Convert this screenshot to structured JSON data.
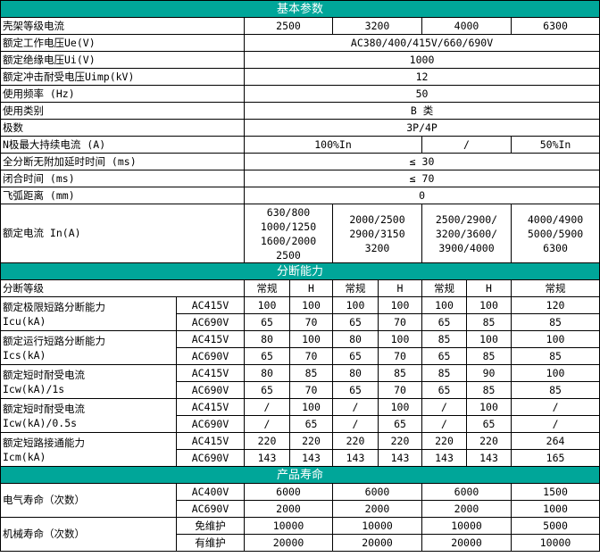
{
  "colors": {
    "section_header_bg": "#00a699",
    "section_header_text": "#ffffff",
    "border": "#000000"
  },
  "basic": {
    "title": "基本参数",
    "rows": [
      {
        "label": "壳架等级电流",
        "values": [
          "2500",
          "3200",
          "4000",
          "6300"
        ]
      },
      {
        "label": "额定工作电压Ue(V)",
        "values": [
          "AC380/400/415V/660/690V"
        ]
      },
      {
        "label": "额定绝缘电压Ui(V)",
        "values": [
          "1000"
        ]
      },
      {
        "label": "额定冲击耐受电压Uimp(kV)",
        "values": [
          "12"
        ]
      },
      {
        "label": "使用频率 (Hz)",
        "values": [
          "50"
        ]
      },
      {
        "label": "使用类别",
        "values": [
          "B 类"
        ]
      },
      {
        "label": "极数",
        "values": [
          "3P/4P"
        ]
      },
      {
        "label": "N极最大持续电流 (A)",
        "values": [
          "100%In",
          "/",
          "50%In"
        ]
      },
      {
        "label": "全分断无附加延时时间 (ms)",
        "values": [
          "≤ 30"
        ]
      },
      {
        "label": "闭合时间 (ms)",
        "values": [
          "≤ 70"
        ]
      },
      {
        "label": "飞弧距离 (mm)",
        "values": [
          "0"
        ]
      },
      {
        "label": "额定电流 In(A)",
        "values": [
          "630/800\n1000/1250\n1600/2000\n2500",
          "2000/2500\n2900/3150\n3200",
          "2500/2900/\n3200/3600/\n3900/4000",
          "4000/4900\n5000/5900\n6300"
        ]
      }
    ]
  },
  "breaking": {
    "title": "分断能力",
    "grade_label": "分断等级",
    "grades": [
      "常规",
      "H",
      "常规",
      "H",
      "常规",
      "H",
      "常规"
    ],
    "params": [
      {
        "label": "额定极限短路分断能力\nIcu(kA)",
        "rows": [
          {
            "voltage": "AC415V",
            "values": [
              "100",
              "100",
              "100",
              "100",
              "100",
              "100",
              "120"
            ]
          },
          {
            "voltage": "AC690V",
            "values": [
              "65",
              "70",
              "65",
              "70",
              "65",
              "85",
              "85"
            ]
          }
        ]
      },
      {
        "label": "额定运行短路分断能力\nIcs(kA)",
        "rows": [
          {
            "voltage": "AC415V",
            "values": [
              "80",
              "100",
              "80",
              "100",
              "85",
              "100",
              "100"
            ]
          },
          {
            "voltage": "AC690V",
            "values": [
              "65",
              "70",
              "65",
              "70",
              "65",
              "85",
              "85"
            ]
          }
        ]
      },
      {
        "label": "额定短时耐受电流\nIcw(kA)/1s",
        "rows": [
          {
            "voltage": "AC415V",
            "values": [
              "80",
              "85",
              "80",
              "85",
              "85",
              "90",
              "100"
            ]
          },
          {
            "voltage": "AC690V",
            "values": [
              "65",
              "70",
              "65",
              "70",
              "65",
              "85",
              "85"
            ]
          }
        ]
      },
      {
        "label": "额定短时耐受电流\nIcw(kA)/0.5s",
        "rows": [
          {
            "voltage": "AC415V",
            "values": [
              "/",
              "100",
              "/",
              "100",
              "/",
              "100",
              "/"
            ]
          },
          {
            "voltage": "AC690V",
            "values": [
              "/",
              "65",
              "/",
              "65",
              "/",
              "65",
              "/"
            ]
          }
        ]
      },
      {
        "label": "额定短路接通能力\nIcm(kA)",
        "rows": [
          {
            "voltage": "AC415V",
            "values": [
              "220",
              "220",
              "220",
              "220",
              "220",
              "220",
              "264"
            ]
          },
          {
            "voltage": "AC690V",
            "values": [
              "143",
              "143",
              "143",
              "143",
              "143",
              "143",
              "165"
            ]
          }
        ]
      }
    ]
  },
  "life": {
    "title": "产品寿命",
    "params": [
      {
        "label": "电气寿命（次数）",
        "rows": [
          {
            "condition": "AC400V",
            "values": [
              "6000",
              "6000",
              "6000",
              "1500"
            ]
          },
          {
            "condition": "AC690V",
            "values": [
              "2000",
              "2000",
              "2000",
              "1000"
            ]
          }
        ]
      },
      {
        "label": "机械寿命（次数）",
        "rows": [
          {
            "condition": "免维护",
            "values": [
              "10000",
              "10000",
              "10000",
              "5000"
            ]
          },
          {
            "condition": "有维护",
            "values": [
              "20000",
              "20000",
              "20000",
              "10000"
            ]
          }
        ]
      }
    ]
  }
}
